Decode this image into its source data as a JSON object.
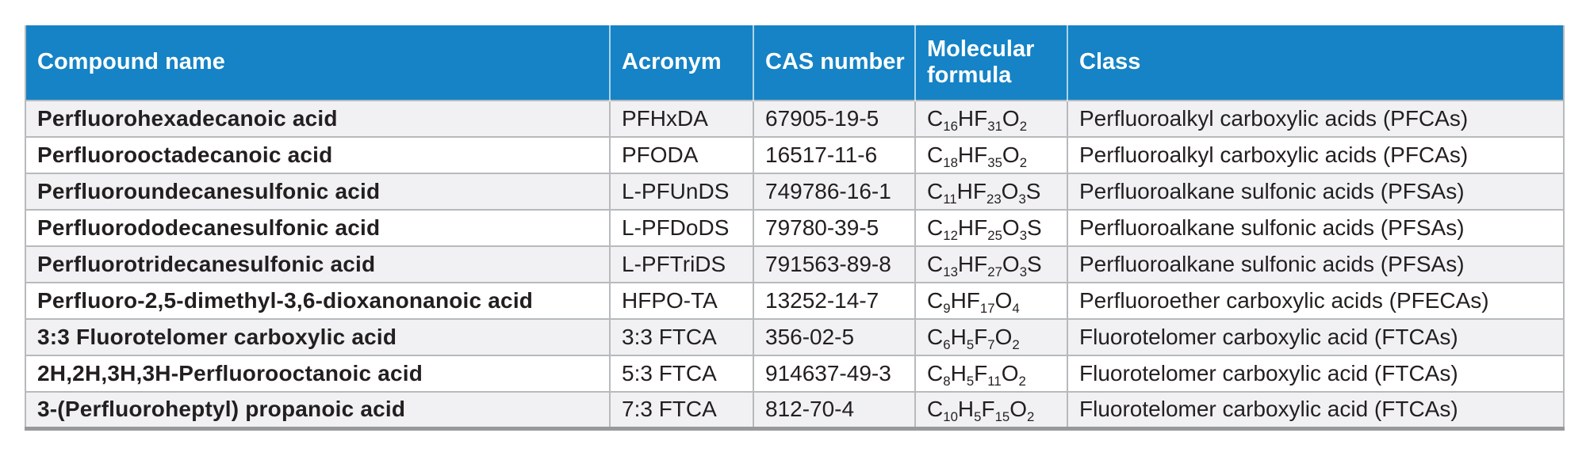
{
  "theme": {
    "header_bg": "#1583c5",
    "header_text": "#ffffff",
    "row_alt_bg": "#f1f1f3",
    "row_bg": "#ffffff",
    "grid_color": "#b7babc",
    "bottom_border": "#97999b",
    "text_color": "#231f20"
  },
  "table": {
    "columns": [
      {
        "id": "name",
        "label": "Compound name"
      },
      {
        "id": "acronym",
        "label": "Acronym"
      },
      {
        "id": "cas",
        "label": "CAS number"
      },
      {
        "id": "formula",
        "label": "Molecular formula"
      },
      {
        "id": "class",
        "label": "Class"
      }
    ],
    "rows": [
      {
        "name": "Perfluorohexadecanoic acid",
        "acronym": "PFHxDA",
        "cas": "67905-19-5",
        "formula": "C16HF31O2",
        "class": "Perfluoroalkyl carboxylic acids (PFCAs)"
      },
      {
        "name": "Perfluorooctadecanoic acid",
        "acronym": "PFODA",
        "cas": "16517-11-6",
        "formula": "C18HF35O2",
        "class": "Perfluoroalkyl carboxylic acids (PFCAs)"
      },
      {
        "name": "Perfluoroundecanesulfonic acid",
        "acronym": "L-PFUnDS",
        "cas": "749786-16-1",
        "formula": "C11HF23O3S",
        "class": "Perfluoroalkane sulfonic acids (PFSAs)"
      },
      {
        "name": "Perfluorododecanesulfonic acid",
        "acronym": "L-PFDoDS",
        "cas": "79780-39-5",
        "formula": "C12HF25O3S",
        "class": "Perfluoroalkane sulfonic acids (PFSAs)"
      },
      {
        "name": "Perfluorotridecanesulfonic acid",
        "acronym": "L-PFTriDS",
        "cas": "791563-89-8",
        "formula": "C13HF27O3S",
        "class": "Perfluoroalkane sulfonic acids (PFSAs)"
      },
      {
        "name": "Perfluoro-2,5-dimethyl-3,6-dioxanonanoic acid",
        "acronym": "HFPO-TA",
        "cas": "13252-14-7",
        "formula": "C9HF17O4",
        "class": "Perfluoroether carboxylic acids (PFECAs)"
      },
      {
        "name": "3:3 Fluorotelomer carboxylic acid",
        "acronym": "3:3 FTCA",
        "cas": "356-02-5",
        "formula": "C6H5F7O2",
        "class": "Fluorotelomer carboxylic acid (FTCAs)"
      },
      {
        "name": "2H,2H,3H,3H-Perfluorooctanoic acid",
        "acronym": "5:3 FTCA",
        "cas": "914637-49-3",
        "formula": "C8H5F11O2",
        "class": "Fluorotelomer carboxylic acid (FTCAs)"
      },
      {
        "name": "3-(Perfluoroheptyl) propanoic acid",
        "acronym": "7:3 FTCA",
        "cas": "812-70-4",
        "formula": "C10H5F15O2",
        "class": "Fluorotelomer carboxylic acid (FTCAs)"
      }
    ]
  }
}
